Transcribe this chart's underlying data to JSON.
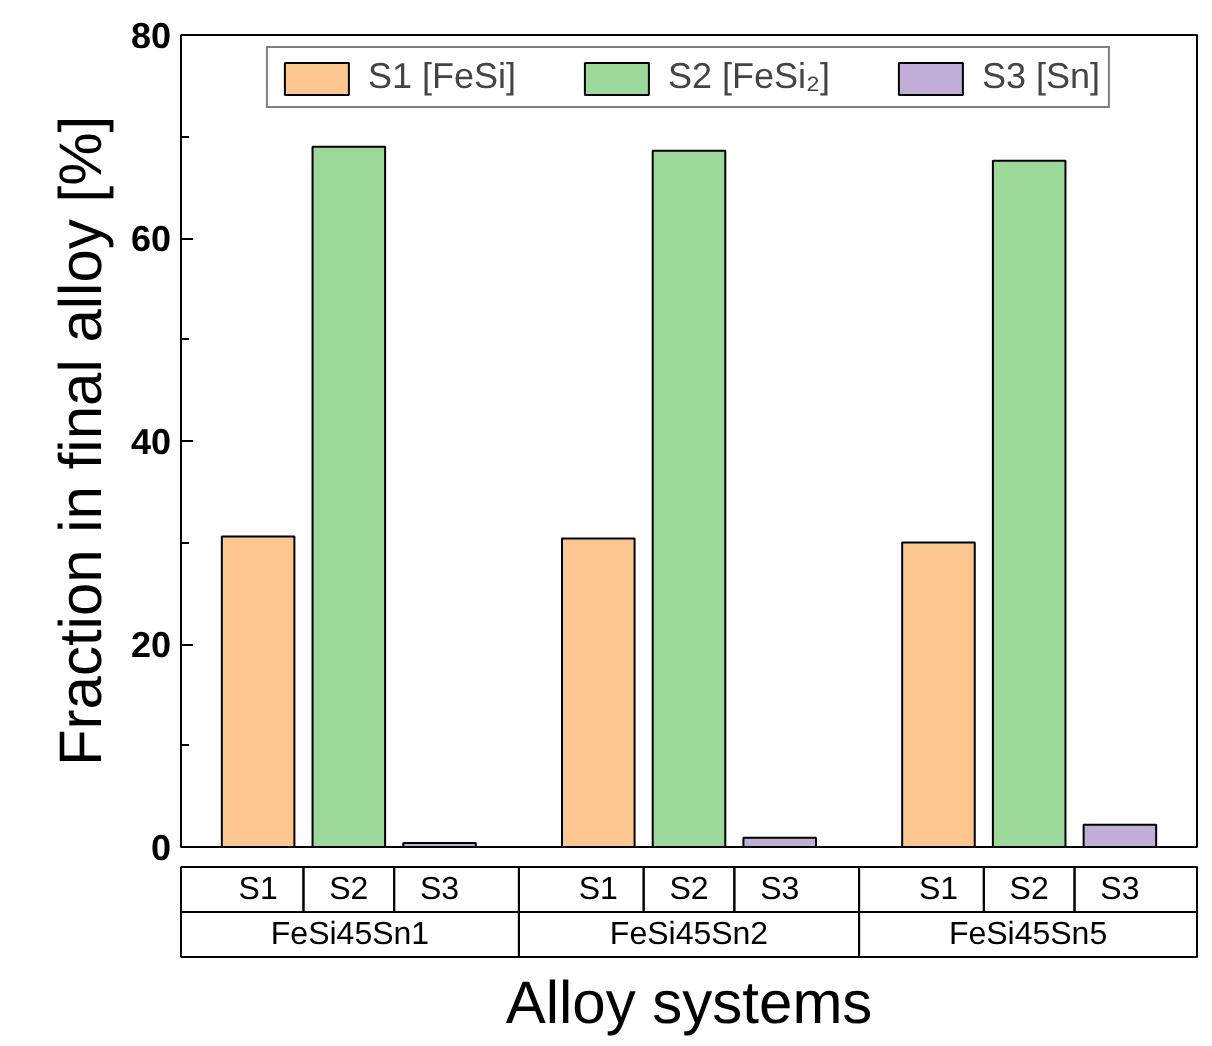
{
  "chart_data": {
    "type": "bar",
    "ylabel": "Fraction in final alloy [%]",
    "xlabel": "Alloy systems",
    "categories": [
      "S1",
      "S2",
      "S3",
      "S1",
      "S2",
      "S3",
      "S1",
      "S2",
      "S3"
    ],
    "series": [
      {
        "name": "S1 [FeSi]",
        "color": "#fbc690",
        "values": [
          30.6,
          null,
          null,
          30.4,
          null,
          null,
          30.0,
          null,
          null
        ]
      },
      {
        "name": "S2 [FeSi₂]",
        "color": "#9dd89b",
        "values": [
          null,
          69.0,
          null,
          null,
          68.6,
          null,
          null,
          67.6,
          null
        ]
      },
      {
        "name": "S3 [Sn]",
        "color": "#c0aed6",
        "values": [
          null,
          null,
          0.4,
          null,
          null,
          0.9,
          null,
          null,
          2.2
        ]
      }
    ],
    "annotations": [
      "FeSi45Sn1",
      "FeSi45Sn2",
      "FeSi45Sn5"
    ],
    "ylim": [
      0,
      80
    ],
    "yticks": [
      0,
      20,
      40,
      60,
      80
    ],
    "grid": false,
    "legend": "top"
  }
}
